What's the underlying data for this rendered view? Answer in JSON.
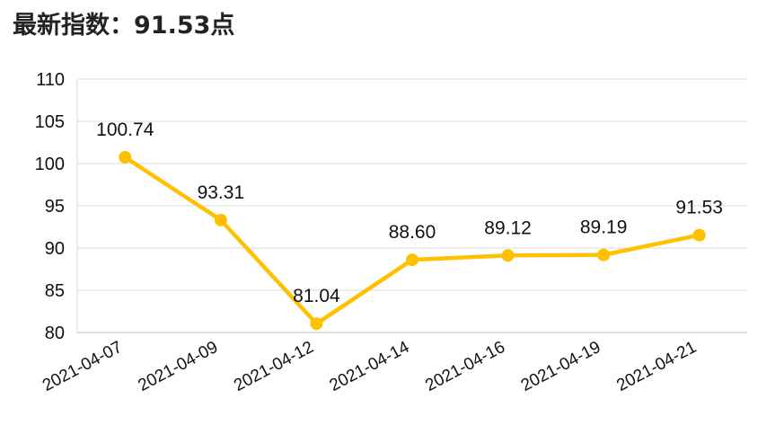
{
  "title": "最新指数：91.53点",
  "chart_data": {
    "type": "line",
    "title": "最新指数：91.53点",
    "categories": [
      "2021-04-07",
      "2021-04-09",
      "2021-04-12",
      "2021-04-14",
      "2021-04-16",
      "2021-04-19",
      "2021-04-21"
    ],
    "series": [
      {
        "values": [
          100.74,
          93.31,
          81.04,
          88.6,
          89.12,
          89.19,
          91.53
        ]
      }
    ],
    "data_labels": [
      "100.74",
      "93.31",
      "81.04",
      "88.60",
      "89.12",
      "89.19",
      "91.53"
    ],
    "y_ticks": [
      "80",
      "85",
      "90",
      "95",
      "100",
      "105",
      "110"
    ],
    "ylim": [
      80,
      110
    ],
    "grid": true,
    "line_color": "#FFC000",
    "grid_color": "#D9D9D9"
  }
}
